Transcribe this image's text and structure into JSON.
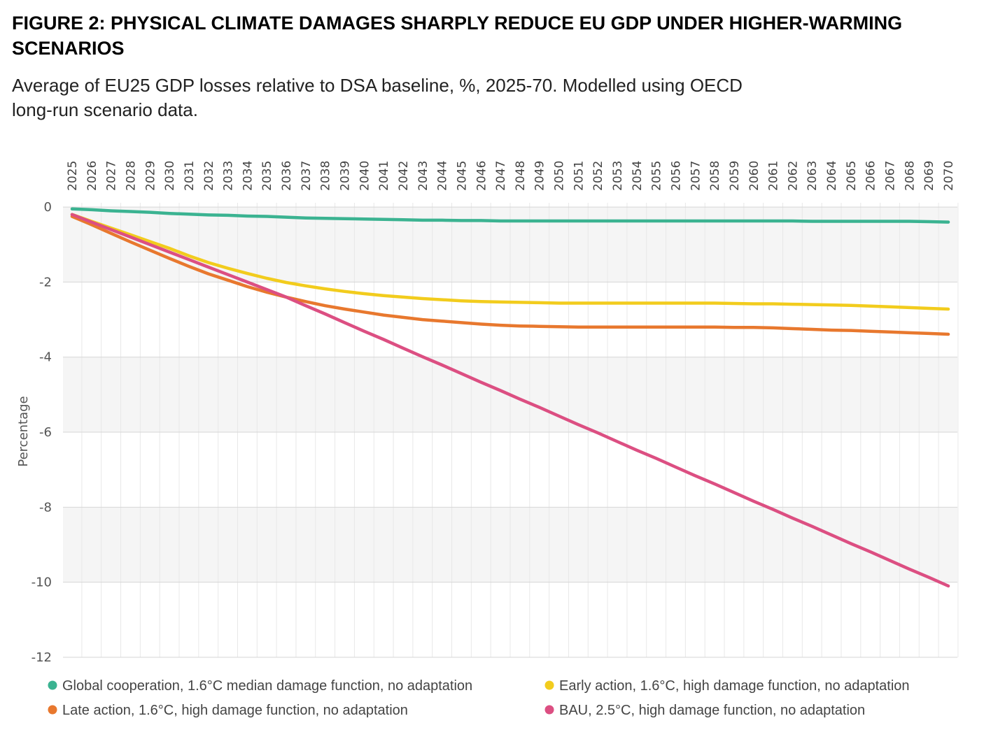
{
  "chart_data": {
    "type": "line",
    "title_lines": [
      "FIGURE 2: PHYSICAL CLIMATE DAMAGES SHARPLY REDUCE EU GDP UNDER HIGHER-WARMING",
      "SCENARIOS"
    ],
    "subtitle_lines": [
      "Average of EU25 GDP losses relative to DSA baseline, %, 2025-70. Modelled using OECD",
      "long-run scenario data."
    ],
    "y_label": "Percentage",
    "categories": [
      "2025",
      "2026",
      "2027",
      "2028",
      "2029",
      "2030",
      "2031",
      "2032",
      "2033",
      "2034",
      "2035",
      "2036",
      "2037",
      "2038",
      "2039",
      "2040",
      "2041",
      "2042",
      "2043",
      "2044",
      "2045",
      "2046",
      "2047",
      "2048",
      "2049",
      "2050",
      "2051",
      "2052",
      "2053",
      "2054",
      "2055",
      "2056",
      "2057",
      "2058",
      "2059",
      "2060",
      "2061",
      "2062",
      "2063",
      "2064",
      "2065",
      "2066",
      "2067",
      "2068",
      "2069",
      "2070"
    ],
    "ylim": [
      -12,
      0.3
    ],
    "yticks": [
      0,
      -2,
      -4,
      -6,
      -8,
      -10,
      -12
    ],
    "grid": true,
    "series": [
      {
        "name": "Global cooperation, 1.6°C median damage function, no adaptation",
        "color": "#3bb391",
        "values": [
          -0.05,
          -0.07,
          -0.1,
          -0.12,
          -0.14,
          -0.17,
          -0.19,
          -0.21,
          -0.22,
          -0.24,
          -0.25,
          -0.27,
          -0.29,
          -0.3,
          -0.31,
          -0.32,
          -0.33,
          -0.34,
          -0.35,
          -0.35,
          -0.36,
          -0.36,
          -0.37,
          -0.37,
          -0.37,
          -0.37,
          -0.37,
          -0.37,
          -0.37,
          -0.37,
          -0.37,
          -0.37,
          -0.37,
          -0.37,
          -0.37,
          -0.37,
          -0.37,
          -0.37,
          -0.38,
          -0.38,
          -0.38,
          -0.38,
          -0.38,
          -0.38,
          -0.39,
          -0.4
        ]
      },
      {
        "name": "Early action, 1.6°C, high damage function, no adaptation",
        "color": "#f2cc1d",
        "values": [
          -0.2,
          -0.38,
          -0.56,
          -0.74,
          -0.92,
          -1.1,
          -1.3,
          -1.48,
          -1.63,
          -1.77,
          -1.9,
          -2.01,
          -2.1,
          -2.18,
          -2.25,
          -2.31,
          -2.36,
          -2.4,
          -2.44,
          -2.47,
          -2.5,
          -2.52,
          -2.53,
          -2.54,
          -2.55,
          -2.56,
          -2.56,
          -2.56,
          -2.56,
          -2.56,
          -2.56,
          -2.56,
          -2.56,
          -2.56,
          -2.57,
          -2.58,
          -2.58,
          -2.59,
          -2.6,
          -2.61,
          -2.62,
          -2.64,
          -2.66,
          -2.68,
          -2.7,
          -2.72
        ]
      },
      {
        "name": "Late action, 1.6°C, high damage function, no adaptation",
        "color": "#e8782e",
        "values": [
          -0.25,
          -0.47,
          -0.7,
          -0.93,
          -1.15,
          -1.37,
          -1.58,
          -1.78,
          -1.95,
          -2.12,
          -2.27,
          -2.4,
          -2.52,
          -2.63,
          -2.72,
          -2.8,
          -2.88,
          -2.94,
          -3.0,
          -3.04,
          -3.08,
          -3.12,
          -3.15,
          -3.17,
          -3.18,
          -3.19,
          -3.2,
          -3.2,
          -3.2,
          -3.2,
          -3.2,
          -3.2,
          -3.2,
          -3.2,
          -3.21,
          -3.21,
          -3.22,
          -3.24,
          -3.26,
          -3.28,
          -3.29,
          -3.31,
          -3.33,
          -3.35,
          -3.37,
          -3.39
        ]
      },
      {
        "name": "BAU, 2.5°C, high damage function, no adaptation",
        "color": "#dc4f82",
        "values": [
          -0.2,
          -0.4,
          -0.6,
          -0.8,
          -1.0,
          -1.2,
          -1.4,
          -1.6,
          -1.8,
          -2.0,
          -2.2,
          -2.4,
          -2.63,
          -2.85,
          -3.08,
          -3.31,
          -3.53,
          -3.76,
          -3.99,
          -4.21,
          -4.44,
          -4.67,
          -4.89,
          -5.12,
          -5.34,
          -5.57,
          -5.8,
          -6.02,
          -6.25,
          -6.48,
          -6.7,
          -6.93,
          -7.16,
          -7.38,
          -7.61,
          -7.84,
          -8.06,
          -8.29,
          -8.51,
          -8.74,
          -8.97,
          -9.19,
          -9.42,
          -9.65,
          -9.87,
          -10.1
        ]
      }
    ]
  }
}
